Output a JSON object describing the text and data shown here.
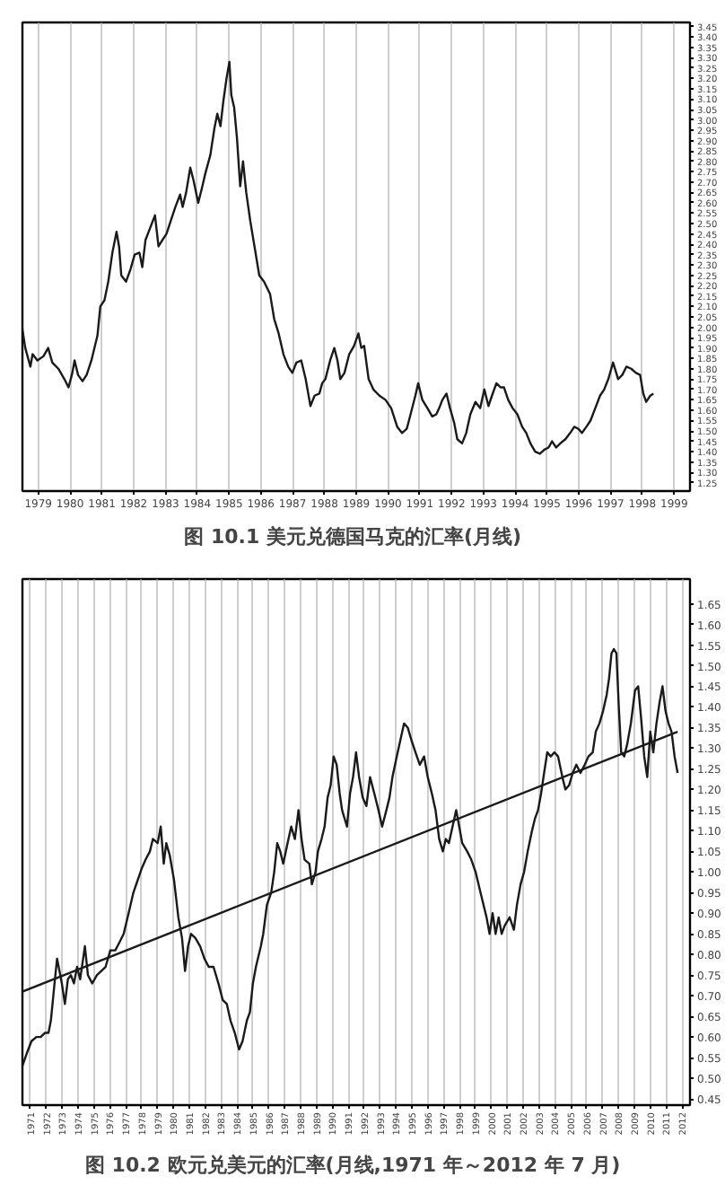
{
  "chart_data": [
    {
      "type": "line",
      "title": "图 10.1  美元兑德国马克的汇率(月线)",
      "color": "#1a1a1a",
      "grid": "x",
      "x": [
        1979.0,
        1979.09,
        1979.25,
        1979.32,
        1979.47,
        1979.66,
        1979.81,
        1979.94,
        1980.13,
        1980.32,
        1980.45,
        1980.57,
        1980.64,
        1980.75,
        1980.89,
        1981.02,
        1981.17,
        1981.36,
        1981.45,
        1981.58,
        1981.7,
        1981.83,
        1981.96,
        1982.04,
        1982.11,
        1982.26,
        1982.4,
        1982.53,
        1982.68,
        1982.77,
        1982.87,
        1983.02,
        1983.17,
        1983.28,
        1983.4,
        1983.53,
        1983.66,
        1983.81,
        1983.96,
        1984.04,
        1984.15,
        1984.28,
        1984.38,
        1984.53,
        1984.66,
        1984.75,
        1984.91,
        1985.04,
        1985.13,
        1985.23,
        1985.32,
        1985.42,
        1985.51,
        1985.57,
        1985.66,
        1985.75,
        1985.85,
        1985.94,
        1986.04,
        1986.17,
        1986.3,
        1986.45,
        1986.6,
        1986.79,
        1986.92,
        1987.06,
        1987.21,
        1987.36,
        1987.49,
        1987.62,
        1987.77,
        1987.91,
        1988.06,
        1988.19,
        1988.34,
        1988.43,
        1988.53,
        1988.68,
        1988.81,
        1988.91,
        1989.0,
        1989.13,
        1989.28,
        1989.43,
        1989.57,
        1989.66,
        1989.75,
        1989.89,
        1990.04,
        1990.23,
        1990.42,
        1990.6,
        1990.79,
        1990.94,
        1991.09,
        1991.21,
        1991.36,
        1991.45,
        1991.58,
        1991.74,
        1991.89,
        1992.02,
        1992.11,
        1992.21,
        1992.34,
        1992.45,
        1992.58,
        1992.68,
        1992.83,
        1992.96,
        1993.09,
        1993.25,
        1993.4,
        1993.53,
        1993.66,
        1993.77,
        1993.91,
        1994.04,
        1994.15,
        1994.28,
        1994.42,
        1994.57,
        1994.72,
        1994.85,
        1994.98,
        1995.13,
        1995.28,
        1995.42,
        1995.55,
        1995.66,
        1995.79,
        1995.92,
        1996.08,
        1996.23,
        1996.36,
        1996.49,
        1996.6,
        1996.74,
        1996.87,
        1997.02,
        1997.17,
        1997.3,
        1997.43,
        1997.58,
        1997.74,
        1997.87,
        1998.0,
        1998.15,
        1998.3,
        1998.43,
        1998.53,
        1998.62,
        1998.75,
        1998.85
      ],
      "values": [
        1.99,
        1.9,
        1.81,
        1.87,
        1.84,
        1.86,
        1.9,
        1.83,
        1.8,
        1.75,
        1.71,
        1.78,
        1.84,
        1.77,
        1.74,
        1.77,
        1.84,
        1.96,
        2.1,
        2.13,
        2.22,
        2.36,
        2.46,
        2.39,
        2.25,
        2.22,
        2.28,
        2.35,
        2.36,
        2.29,
        2.42,
        2.48,
        2.54,
        2.39,
        2.42,
        2.45,
        2.51,
        2.58,
        2.64,
        2.58,
        2.65,
        2.77,
        2.71,
        2.6,
        2.68,
        2.74,
        2.83,
        2.96,
        3.03,
        2.97,
        3.09,
        3.2,
        3.28,
        3.12,
        3.06,
        2.91,
        2.68,
        2.8,
        2.65,
        2.51,
        2.39,
        2.25,
        2.22,
        2.16,
        2.04,
        1.97,
        1.87,
        1.81,
        1.78,
        1.83,
        1.84,
        1.75,
        1.62,
        1.67,
        1.68,
        1.73,
        1.75,
        1.84,
        1.9,
        1.84,
        1.75,
        1.78,
        1.87,
        1.91,
        1.97,
        1.9,
        1.91,
        1.75,
        1.7,
        1.67,
        1.65,
        1.61,
        1.52,
        1.49,
        1.51,
        1.58,
        1.67,
        1.73,
        1.65,
        1.61,
        1.57,
        1.58,
        1.61,
        1.65,
        1.68,
        1.61,
        1.54,
        1.46,
        1.44,
        1.49,
        1.58,
        1.64,
        1.61,
        1.7,
        1.62,
        1.67,
        1.73,
        1.71,
        1.71,
        1.65,
        1.61,
        1.58,
        1.52,
        1.49,
        1.44,
        1.4,
        1.39,
        1.41,
        1.42,
        1.45,
        1.42,
        1.44,
        1.46,
        1.49,
        1.52,
        1.51,
        1.49,
        1.52,
        1.55,
        1.61,
        1.67,
        1.7,
        1.75,
        1.83,
        1.75,
        1.77,
        1.81,
        1.8,
        1.78,
        1.77,
        1.68,
        1.64,
        1.67,
        1.68
      ],
      "xlim": [
        1979,
        2000
      ],
      "ylim": [
        1.21,
        3.47
      ],
      "xticks": [
        {
          "value": 1979.5,
          "label": "1979"
        },
        {
          "value": 1980.5,
          "label": "1980"
        },
        {
          "value": 1981.5,
          "label": "1981"
        },
        {
          "value": 1982.5,
          "label": "1982"
        },
        {
          "value": 1983.5,
          "label": "1983"
        },
        {
          "value": 1984.5,
          "label": "1984"
        },
        {
          "value": 1985.5,
          "label": "1985"
        },
        {
          "value": 1986.5,
          "label": "1986"
        },
        {
          "value": 1987.5,
          "label": "1987"
        },
        {
          "value": 1988.5,
          "label": "1988"
        },
        {
          "value": 1989.5,
          "label": "1989"
        },
        {
          "value": 1990.5,
          "label": "1990"
        },
        {
          "value": 1991.5,
          "label": "1991"
        },
        {
          "value": 1992.5,
          "label": "1992"
        },
        {
          "value": 1993.5,
          "label": "1993"
        },
        {
          "value": 1994.5,
          "label": "1994"
        },
        {
          "value": 1995.5,
          "label": "1995"
        },
        {
          "value": 1996.5,
          "label": "1996"
        },
        {
          "value": 1997.5,
          "label": "1997"
        },
        {
          "value": 1998.5,
          "label": "1998"
        },
        {
          "value": 1999.5,
          "label": "1999"
        }
      ],
      "yticks": [
        1.25,
        {
          "value": 1.3,
          "label": "1.30"
        },
        1.35,
        {
          "value": 1.4,
          "label": "1.40"
        },
        1.45,
        {
          "value": 1.5,
          "label": "1.50"
        },
        1.55,
        {
          "value": 1.6,
          "label": "1.60"
        },
        1.65,
        {
          "value": 1.7,
          "label": "1.70"
        },
        1.75,
        {
          "value": 1.8,
          "label": "1.80"
        },
        1.85,
        {
          "value": 1.9,
          "label": "1.90"
        },
        1.95,
        {
          "value": 2,
          "label": "2.00"
        },
        2.05,
        {
          "value": 2.1,
          "label": "2.10"
        },
        2.15,
        {
          "value": 2.2,
          "label": "2.20"
        },
        2.25,
        {
          "value": 2.3,
          "label": "2.30"
        },
        2.35,
        {
          "value": 2.4,
          "label": "2.40"
        },
        2.45,
        {
          "value": 2.5,
          "label": "2.50"
        },
        2.55,
        {
          "value": 2.6,
          "label": "2.60"
        },
        2.65,
        {
          "value": 2.7,
          "label": "2.70"
        },
        2.75,
        {
          "value": 2.8,
          "label": "2.80"
        },
        2.85,
        {
          "value": 2.9,
          "label": "2.90"
        },
        2.95,
        {
          "value": 3,
          "label": "3.00"
        },
        3.05,
        {
          "value": 3.1,
          "label": "3.10"
        },
        3.15,
        {
          "value": 3.2,
          "label": "3.20"
        },
        3.25,
        {
          "value": 3.3,
          "label": "3.30"
        },
        3.35,
        {
          "value": 3.4,
          "label": "3.40"
        },
        3.45
      ]
    },
    {
      "type": "line",
      "title": "图 10.2  欧元兑美元的汇率(月线,1971 年～2012 年 7 月)",
      "grid": "x",
      "series": [
        {
          "color": "#1a1a1a",
          "x": [
            1971.0,
            1971.27,
            1971.57,
            1971.88,
            1972.15,
            1972.41,
            1972.64,
            1972.79,
            1973.02,
            1973.18,
            1973.33,
            1973.48,
            1973.67,
            1973.86,
            1974.05,
            1974.24,
            1974.44,
            1974.63,
            1974.82,
            1974.93,
            1975.12,
            1975.39,
            1975.69,
            1975.96,
            1976.23,
            1976.53,
            1976.84,
            1977.11,
            1977.37,
            1977.68,
            1977.98,
            1978.25,
            1978.52,
            1978.75,
            1979.02,
            1979.21,
            1979.51,
            1979.7,
            1979.89,
            1980.05,
            1980.27,
            1980.54,
            1980.81,
            1981.04,
            1981.23,
            1981.42,
            1981.61,
            1981.88,
            1982.18,
            1982.45,
            1982.72,
            1983.02,
            1983.33,
            1983.6,
            1983.86,
            1984.09,
            1984.36,
            1984.63,
            1984.85,
            1985.12,
            1985.31,
            1985.5,
            1985.69,
            1986.0,
            1986.15,
            1986.38,
            1986.65,
            1986.84,
            1987.03,
            1987.22,
            1987.41,
            1987.68,
            1987.91,
            1988.14,
            1988.37,
            1988.56,
            1988.75,
            1989.05,
            1989.21,
            1989.44,
            1989.59,
            1989.82,
            1990.01,
            1990.2,
            1990.39,
            1990.58,
            1990.77,
            1990.96,
            1991.11,
            1991.42,
            1991.61,
            1991.8,
            1991.99,
            1992.18,
            1992.41,
            1992.64,
            1992.87,
            1993.14,
            1993.4,
            1993.63,
            1993.9,
            1994.09,
            1994.28,
            1994.55,
            1994.78,
            1995.01,
            1995.24,
            1995.47,
            1995.73,
            1996.0,
            1996.27,
            1996.5,
            1996.76,
            1996.99,
            1997.22,
            1997.45,
            1997.64,
            1997.83,
            1998.06,
            1998.29,
            1998.48,
            1998.67,
            1998.98,
            1999.24,
            1999.51,
            1999.82,
            2000.01,
            2000.2,
            2000.39,
            2000.58,
            2000.77,
            2000.96,
            2001.15,
            2001.34,
            2001.65,
            2001.92,
            2002.11,
            2002.34,
            2002.56,
            2002.79,
            2003.06,
            2003.25,
            2003.44,
            2003.63,
            2003.82,
            2004.02,
            2004.24,
            2004.47,
            2004.7,
            2004.97,
            2005.16,
            2005.39,
            2005.62,
            2005.85,
            2006.11,
            2006.38,
            2006.61,
            2006.88,
            2007.07,
            2007.3,
            2007.53,
            2007.76,
            2007.91,
            2008.06,
            2008.21,
            2008.37,
            2008.52,
            2008.67,
            2008.86,
            2009.05,
            2009.28,
            2009.54,
            2009.74,
            2009.93,
            2010.12,
            2010.31,
            2010.5,
            2010.69,
            2010.89,
            2011.08,
            2011.27,
            2011.46,
            2011.65,
            2011.84,
            2012.03,
            2012.22
          ],
          "values": [
            0.53,
            0.56,
            0.59,
            0.6,
            0.6,
            0.61,
            0.61,
            0.64,
            0.73,
            0.79,
            0.76,
            0.73,
            0.68,
            0.74,
            0.75,
            0.73,
            0.77,
            0.74,
            0.79,
            0.82,
            0.75,
            0.73,
            0.75,
            0.76,
            0.77,
            0.81,
            0.81,
            0.83,
            0.85,
            0.9,
            0.95,
            0.98,
            1.01,
            1.03,
            1.05,
            1.08,
            1.07,
            1.11,
            1.02,
            1.07,
            1.04,
            0.98,
            0.89,
            0.84,
            0.76,
            0.82,
            0.85,
            0.84,
            0.82,
            0.79,
            0.77,
            0.77,
            0.73,
            0.69,
            0.68,
            0.64,
            0.61,
            0.57,
            0.59,
            0.64,
            0.66,
            0.73,
            0.77,
            0.82,
            0.85,
            0.92,
            0.95,
            1.0,
            1.07,
            1.05,
            1.02,
            1.07,
            1.11,
            1.08,
            1.15,
            1.08,
            1.03,
            1.02,
            0.97,
            1.0,
            1.05,
            1.08,
            1.11,
            1.18,
            1.21,
            1.28,
            1.26,
            1.19,
            1.15,
            1.11,
            1.19,
            1.23,
            1.29,
            1.23,
            1.18,
            1.16,
            1.23,
            1.19,
            1.15,
            1.11,
            1.15,
            1.18,
            1.23,
            1.28,
            1.32,
            1.36,
            1.35,
            1.32,
            1.29,
            1.26,
            1.28,
            1.23,
            1.19,
            1.15,
            1.08,
            1.05,
            1.08,
            1.07,
            1.11,
            1.15,
            1.11,
            1.07,
            1.05,
            1.03,
            1.0,
            0.95,
            0.92,
            0.89,
            0.85,
            0.9,
            0.85,
            0.89,
            0.85,
            0.87,
            0.89,
            0.86,
            0.92,
            0.97,
            1.0,
            1.05,
            1.1,
            1.13,
            1.15,
            1.19,
            1.24,
            1.29,
            1.28,
            1.29,
            1.28,
            1.23,
            1.2,
            1.21,
            1.24,
            1.26,
            1.24,
            1.26,
            1.28,
            1.29,
            1.34,
            1.36,
            1.39,
            1.43,
            1.47,
            1.53,
            1.54,
            1.53,
            1.4,
            1.29,
            1.28,
            1.31,
            1.36,
            1.44,
            1.45,
            1.37,
            1.28,
            1.23,
            1.34,
            1.29,
            1.36,
            1.41,
            1.45,
            1.39,
            1.36,
            1.34,
            1.28,
            1.24
          ]
        },
        {
          "type": "line",
          "color": "#1a1a1a",
          "x": [
            1971.0,
            2012.22
          ],
          "values": [
            0.71,
            1.34
          ]
        }
      ],
      "xlim": [
        1971,
        2013
      ],
      "ylim": [
        0.435,
        1.71
      ],
      "xticks": [
        {
          "value": 1971.5,
          "label": "1971"
        },
        {
          "value": 1972.5,
          "label": "1972"
        },
        {
          "value": 1973.5,
          "label": "1973"
        },
        {
          "value": 1974.5,
          "label": "1974"
        },
        {
          "value": 1975.5,
          "label": "1975"
        },
        {
          "value": 1976.5,
          "label": "1976"
        },
        {
          "value": 1977.5,
          "label": "1977"
        },
        {
          "value": 1978.5,
          "label": "1978"
        },
        {
          "value": 1979.5,
          "label": "1979"
        },
        {
          "value": 1980.5,
          "label": "1980"
        },
        {
          "value": 1981.5,
          "label": "1981"
        },
        {
          "value": 1982.5,
          "label": "1982"
        },
        {
          "value": 1983.5,
          "label": "1983"
        },
        {
          "value": 1984.5,
          "label": "1984"
        },
        {
          "value": 1985.5,
          "label": "1985"
        },
        {
          "value": 1986.5,
          "label": "1986"
        },
        {
          "value": 1987.5,
          "label": "1987"
        },
        {
          "value": 1988.5,
          "label": "1988"
        },
        {
          "value": 1989.5,
          "label": "1989"
        },
        {
          "value": 1990.5,
          "label": "1990"
        },
        {
          "value": 1991.5,
          "label": "1991"
        },
        {
          "value": 1992.5,
          "label": "1992"
        },
        {
          "value": 1993.5,
          "label": "1993"
        },
        {
          "value": 1994.5,
          "label": "1994"
        },
        {
          "value": 1995.5,
          "label": "1995"
        },
        {
          "value": 1996.5,
          "label": "1996"
        },
        {
          "value": 1997.5,
          "label": "1997"
        },
        {
          "value": 1998.5,
          "label": "1998"
        },
        {
          "value": 1999.5,
          "label": "1999"
        },
        {
          "value": 2000.5,
          "label": "2000"
        },
        {
          "value": 2001.5,
          "label": "2001"
        },
        {
          "value": 2002.5,
          "label": "2002"
        },
        {
          "value": 2003.5,
          "label": "2003"
        },
        {
          "value": 2004.5,
          "label": "2004"
        },
        {
          "value": 2005.5,
          "label": "2005"
        },
        {
          "value": 2006.5,
          "label": "2006"
        },
        {
          "value": 2007.5,
          "label": "2007"
        },
        {
          "value": 2008.5,
          "label": "2008"
        },
        {
          "value": 2009.5,
          "label": "2009"
        },
        {
          "value": 2010.5,
          "label": "2010"
        },
        {
          "value": 2011.5,
          "label": "2011"
        },
        {
          "value": 2012.5,
          "label": "2012"
        }
      ],
      "yticks": [
        0.45,
        {
          "value": 0.5,
          "label": "0.50"
        },
        0.55,
        {
          "value": 0.6,
          "label": "0.60"
        },
        0.65,
        {
          "value": 0.7,
          "label": "0.70"
        },
        0.75,
        {
          "value": 0.8,
          "label": "0.80"
        },
        0.85,
        {
          "value": 0.9,
          "label": "0.90"
        },
        0.95,
        {
          "value": 1,
          "label": "1.00"
        },
        1.05,
        {
          "value": 1.1,
          "label": "1.10"
        },
        1.15,
        {
          "value": 1.2,
          "label": "1.20"
        },
        1.25,
        {
          "value": 1.3,
          "label": "1.30"
        },
        1.35,
        {
          "value": 1.4,
          "label": "1.40"
        },
        1.45,
        {
          "value": 1.5,
          "label": "1.50"
        },
        1.55,
        {
          "value": 1.6,
          "label": "1.60"
        },
        1.65
      ]
    }
  ]
}
